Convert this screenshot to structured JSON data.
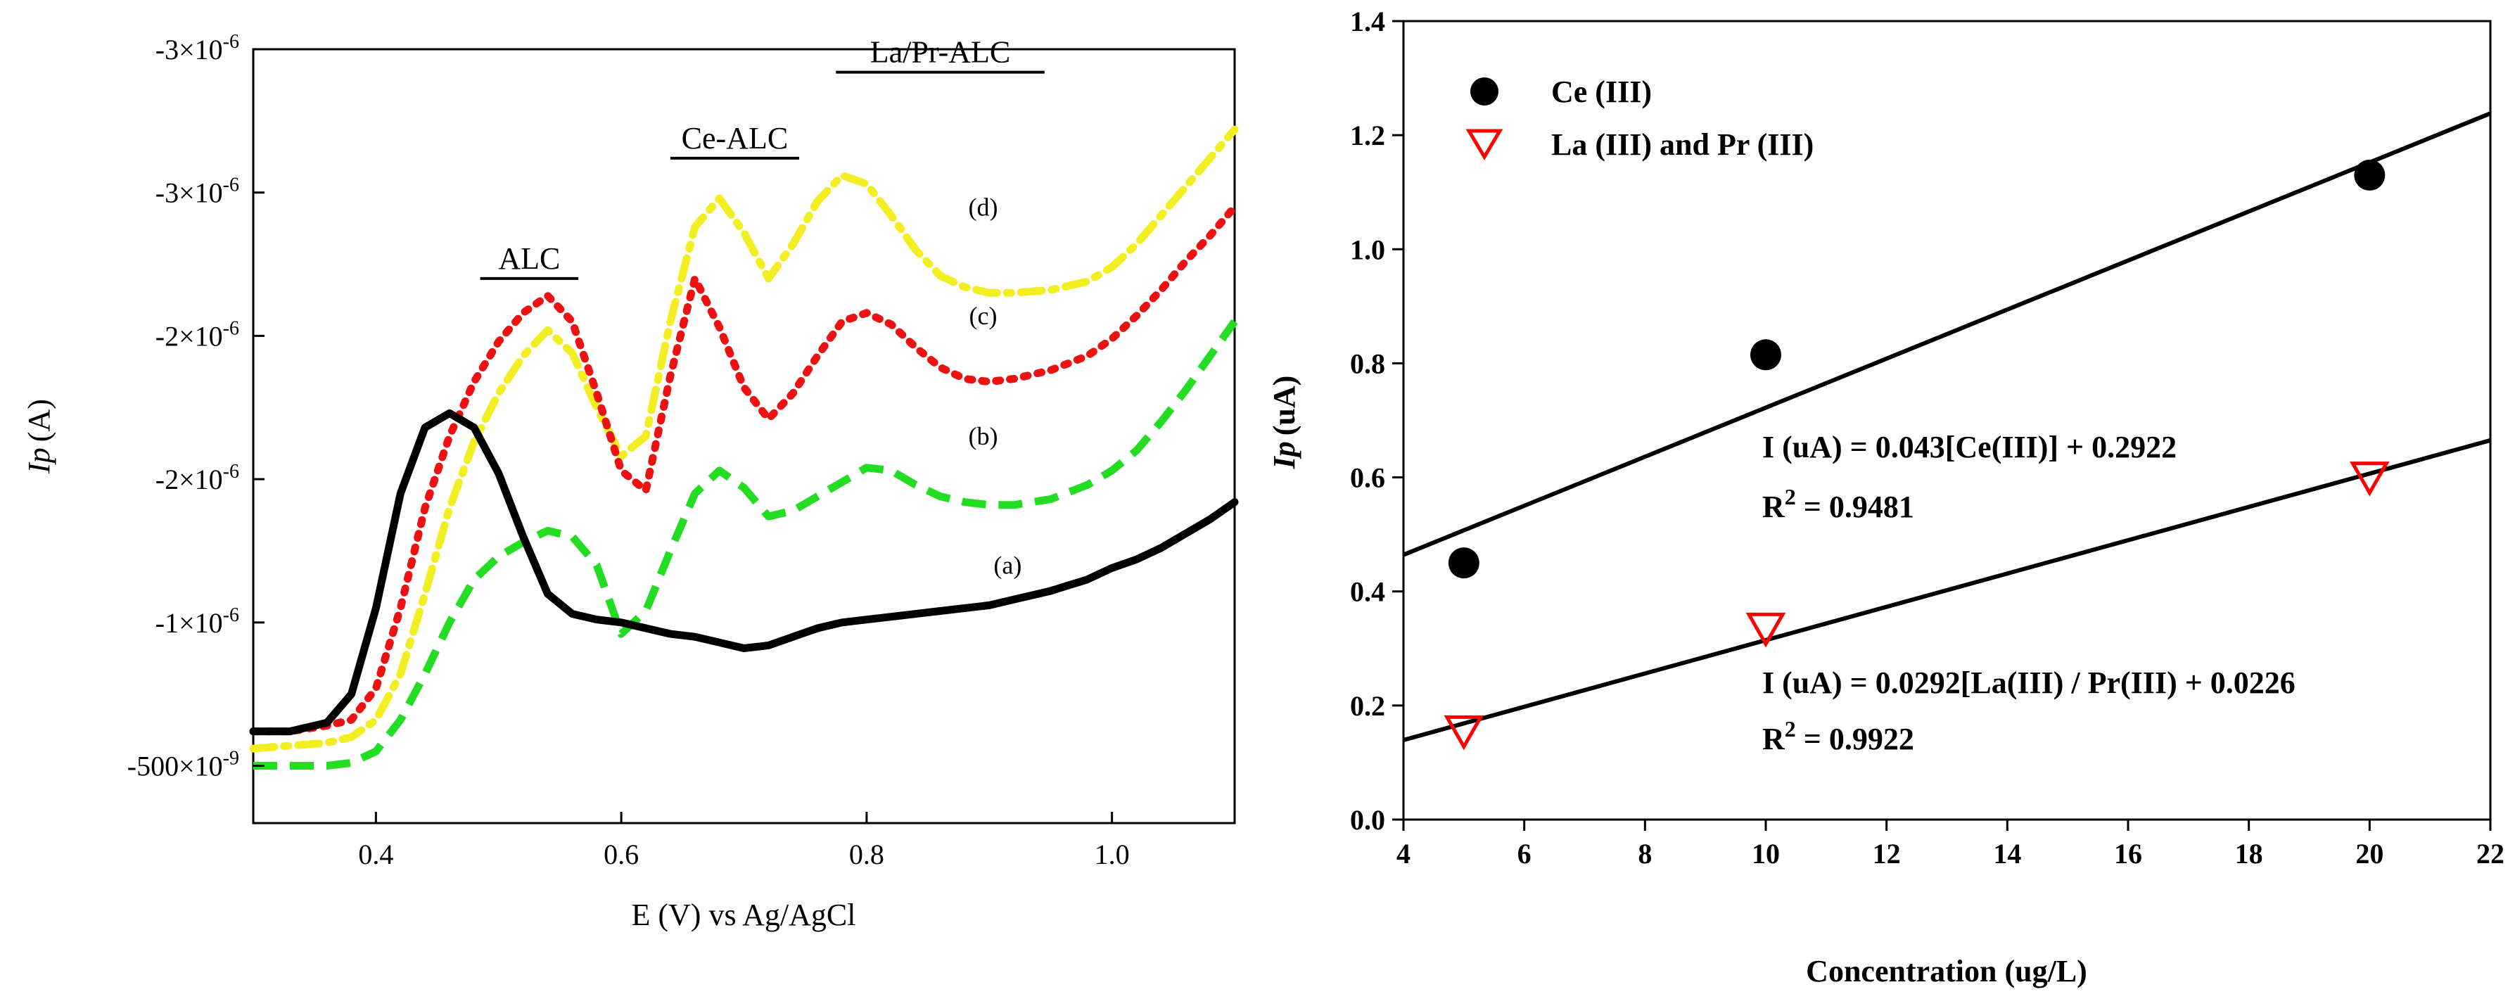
{
  "chart_data": [
    {
      "type": "line",
      "title": "",
      "xlabel": "E (V) vs Ag/AgCl",
      "ylabel_italic": "Ip",
      "ylabel_unit": "(A)",
      "xlim": [
        0.3,
        1.1
      ],
      "ylim": [
        -3e-07,
        -3e-06
      ],
      "x_ticks": [
        {
          "v": 0.4,
          "label": "0.4"
        },
        {
          "v": 0.6,
          "label": "0.6"
        },
        {
          "v": 0.8,
          "label": "0.8"
        },
        {
          "v": 1.0,
          "label": "1.0"
        }
      ],
      "y_ticks": [
        {
          "v": -5e-07,
          "label": "-500×10",
          "exp": "-9"
        },
        {
          "v": -1e-06,
          "label": "-1×10",
          "exp": "-6"
        },
        {
          "v": -1.5e-06,
          "label": "-2×10",
          "exp": "-6"
        },
        {
          "v": -2e-06,
          "label": "-2×10",
          "exp": "-6"
        },
        {
          "v": -2.5e-06,
          "label": "-3×10",
          "exp": "-6"
        },
        {
          "v": -3e-06,
          "label": "-3×10",
          "exp": "-6"
        }
      ],
      "series": [
        {
          "name": "(a)",
          "color": "#000000",
          "x": [
            0.3,
            0.33,
            0.36,
            0.38,
            0.4,
            0.42,
            0.44,
            0.46,
            0.48,
            0.5,
            0.52,
            0.54,
            0.56,
            0.58,
            0.6,
            0.62,
            0.64,
            0.66,
            0.68,
            0.7,
            0.72,
            0.74,
            0.76,
            0.78,
            0.8,
            0.82,
            0.84,
            0.86,
            0.88,
            0.9,
            0.92,
            0.95,
            0.98,
            1.0,
            1.02,
            1.04,
            1.06,
            1.08,
            1.1
          ],
          "y": [
            -6.2e-07,
            -6.2e-07,
            -6.5e-07,
            -7.5e-07,
            -1.05e-06,
            -1.45e-06,
            -1.68e-06,
            -1.73e-06,
            -1.68e-06,
            -1.52e-06,
            -1.3e-06,
            -1.1e-06,
            -1.03e-06,
            -1.01e-06,
            -1e-06,
            -9.8e-07,
            -9.6e-07,
            -9.5e-07,
            -9.3e-07,
            -9.1e-07,
            -9.2e-07,
            -9.5e-07,
            -9.8e-07,
            -1e-06,
            -1.01e-06,
            -1.02e-06,
            -1.03e-06,
            -1.04e-06,
            -1.05e-06,
            -1.06e-06,
            -1.08e-06,
            -1.11e-06,
            -1.15e-06,
            -1.19e-06,
            -1.22e-06,
            -1.26e-06,
            -1.31e-06,
            -1.36e-06,
            -1.42e-06
          ]
        },
        {
          "name": "(b)",
          "color": "#22dd22",
          "x": [
            0.3,
            0.33,
            0.36,
            0.38,
            0.4,
            0.42,
            0.44,
            0.46,
            0.48,
            0.5,
            0.52,
            0.54,
            0.56,
            0.58,
            0.6,
            0.62,
            0.64,
            0.66,
            0.68,
            0.7,
            0.72,
            0.74,
            0.76,
            0.78,
            0.8,
            0.82,
            0.84,
            0.86,
            0.88,
            0.9,
            0.92,
            0.95,
            0.98,
            1.0,
            1.02,
            1.04,
            1.06,
            1.08,
            1.1
          ],
          "y": [
            -5e-07,
            -5e-07,
            -5e-07,
            -5.1e-07,
            -5.5e-07,
            -6.6e-07,
            -8.2e-07,
            -1e-06,
            -1.15e-06,
            -1.23e-06,
            -1.28e-06,
            -1.32e-06,
            -1.3e-06,
            -1.2e-06,
            -9.6e-07,
            -1.04e-06,
            -1.25e-06,
            -1.45e-06,
            -1.53e-06,
            -1.47e-06,
            -1.37e-06,
            -1.39e-06,
            -1.44e-06,
            -1.49e-06,
            -1.54e-06,
            -1.53e-06,
            -1.48e-06,
            -1.44e-06,
            -1.42e-06,
            -1.41e-06,
            -1.41e-06,
            -1.43e-06,
            -1.48e-06,
            -1.53e-06,
            -1.6e-06,
            -1.7e-06,
            -1.81e-06,
            -1.93e-06,
            -2.05e-06
          ]
        },
        {
          "name": "(c)",
          "color": "#ee1111",
          "x": [
            0.3,
            0.33,
            0.36,
            0.38,
            0.4,
            0.42,
            0.44,
            0.46,
            0.48,
            0.5,
            0.52,
            0.54,
            0.56,
            0.58,
            0.6,
            0.62,
            0.64,
            0.66,
            0.68,
            0.7,
            0.72,
            0.74,
            0.76,
            0.78,
            0.8,
            0.82,
            0.84,
            0.86,
            0.88,
            0.9,
            0.92,
            0.95,
            0.98,
            1.0,
            1.02,
            1.04,
            1.06,
            1.08,
            1.1
          ],
          "y": [
            -6.2e-07,
            -6.2e-07,
            -6.4e-07,
            -6.6e-07,
            -7.7e-07,
            -1.05e-06,
            -1.4e-06,
            -1.65e-06,
            -1.84e-06,
            -1.98e-06,
            -2.08e-06,
            -2.14e-06,
            -2.05e-06,
            -1.8e-06,
            -1.53e-06,
            -1.46e-06,
            -1.86e-06,
            -2.2e-06,
            -2.03e-06,
            -1.82e-06,
            -1.71e-06,
            -1.8e-06,
            -1.93e-06,
            -2.05e-06,
            -2.08e-06,
            -2.04e-06,
            -1.96e-06,
            -1.89e-06,
            -1.85e-06,
            -1.84e-06,
            -1.85e-06,
            -1.88e-06,
            -1.93e-06,
            -1.99e-06,
            -2.07e-06,
            -2.16e-06,
            -2.26e-06,
            -2.35e-06,
            -2.45e-06
          ]
        },
        {
          "name": "(d)",
          "color": "#f2ee22",
          "x": [
            0.3,
            0.33,
            0.36,
            0.38,
            0.4,
            0.42,
            0.44,
            0.46,
            0.48,
            0.5,
            0.52,
            0.54,
            0.56,
            0.58,
            0.6,
            0.62,
            0.64,
            0.66,
            0.68,
            0.7,
            0.72,
            0.74,
            0.76,
            0.78,
            0.8,
            0.82,
            0.84,
            0.86,
            0.88,
            0.9,
            0.92,
            0.95,
            0.98,
            1.0,
            1.02,
            1.04,
            1.06,
            1.08,
            1.1
          ],
          "y": [
            -5.6e-07,
            -5.7e-07,
            -5.8e-07,
            -6e-07,
            -6.6e-07,
            -8.2e-07,
            -1.1e-06,
            -1.4e-06,
            -1.63e-06,
            -1.8e-06,
            -1.93e-06,
            -2.02e-06,
            -1.94e-06,
            -1.75e-06,
            -1.58e-06,
            -1.65e-06,
            -2.05e-06,
            -2.38e-06,
            -2.48e-06,
            -2.36e-06,
            -2.2e-06,
            -2.32e-06,
            -2.47e-06,
            -2.56e-06,
            -2.53e-06,
            -2.42e-06,
            -2.3e-06,
            -2.21e-06,
            -2.17e-06,
            -2.15e-06,
            -2.15e-06,
            -2.16e-06,
            -2.19e-06,
            -2.24e-06,
            -2.32e-06,
            -2.42e-06,
            -2.52e-06,
            -2.62e-06,
            -2.72e-06
          ]
        }
      ],
      "curve_labels": [
        {
          "text": "(a)",
          "x": 0.915,
          "y": -1.17e-06
        },
        {
          "text": "(b)",
          "x": 0.895,
          "y": -1.62e-06
        },
        {
          "text": "(c)",
          "x": 0.895,
          "y": -2.04e-06
        },
        {
          "text": "(d)",
          "x": 0.895,
          "y": -2.42e-06
        }
      ],
      "region_labels": [
        {
          "text": "ALC",
          "x_start": 0.485,
          "x_end": 0.565,
          "y": -2.2e-06
        },
        {
          "text": "Ce-ALC",
          "x_start": 0.64,
          "x_end": 0.745,
          "y": -2.62e-06
        },
        {
          "text": "La/Pr-ALC",
          "x_start": 0.775,
          "x_end": 0.945,
          "y": -2.92e-06
        }
      ]
    },
    {
      "type": "scatter",
      "title": "",
      "xlabel": "Concentration (ug/L)",
      "ylabel_italic": "Ip",
      "ylabel_unit": "(uA)",
      "xlim": [
        4,
        22
      ],
      "ylim": [
        0,
        1.4
      ],
      "x_ticks": [
        4,
        6,
        8,
        10,
        12,
        14,
        16,
        18,
        20,
        22
      ],
      "y_ticks": [
        "0.0",
        "0.2",
        "0.4",
        "0.6",
        "0.8",
        "1.0",
        "1.2",
        "1.4"
      ],
      "legend": [
        {
          "label": "Ce (III)",
          "marker": "filled-circle",
          "color": "#000000"
        },
        {
          "label": "La (III) and Pr (III)",
          "marker": "open-triangle-down",
          "color": "#ff0000"
        }
      ],
      "series": [
        {
          "name": "Ce (III)",
          "x": [
            5,
            10,
            20
          ],
          "y": [
            0.45,
            0.815,
            1.13
          ]
        },
        {
          "name": "La (III) and Pr (III)",
          "x": [
            5,
            10,
            20
          ],
          "y": [
            0.155,
            0.335,
            0.6
          ]
        }
      ],
      "fits": [
        {
          "series": "Ce (III)",
          "slope": 0.043,
          "intercept": 0.2922,
          "x_range": [
            4,
            22
          ]
        },
        {
          "series": "La (III) and Pr (III)",
          "slope": 0.0292,
          "intercept": 0.0226,
          "x_range": [
            4,
            22
          ]
        }
      ],
      "annotations": [
        {
          "equation": "I (uA) = 0.043[Ce(III)] + 0.2922",
          "r2_prefix": "R",
          "r2_sup": "2",
          "r2_value": " = 0.9481"
        },
        {
          "equation": "I (uA) = 0.0292[La(III) / Pr(III) + 0.0226",
          "r2_prefix": "R",
          "r2_sup": "2",
          "r2_value": " = 0.9922"
        }
      ]
    }
  ]
}
